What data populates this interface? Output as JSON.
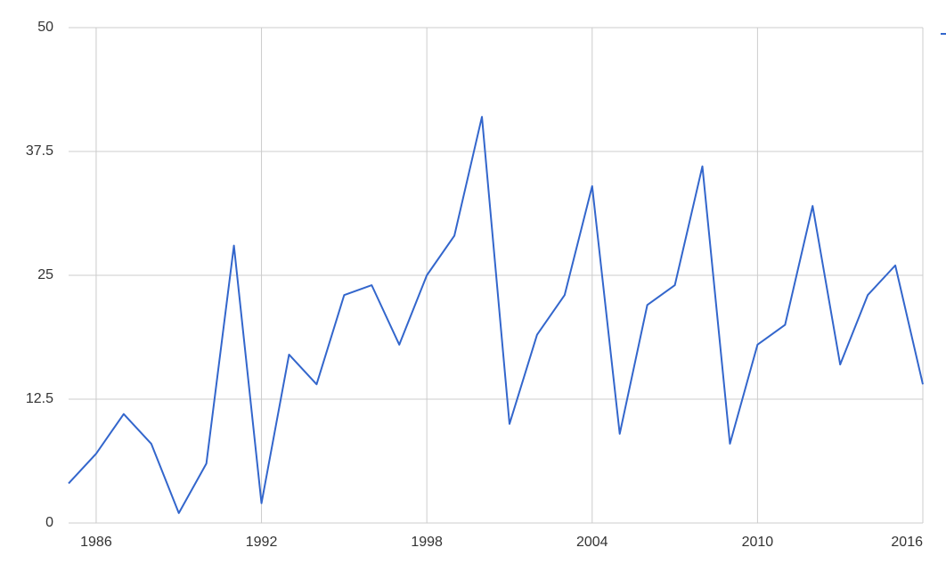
{
  "chart_data": {
    "type": "line",
    "x": [
      1985,
      1986,
      1987,
      1988,
      1989,
      1990,
      1991,
      1992,
      1993,
      1994,
      1995,
      1996,
      1997,
      1998,
      1999,
      2000,
      2001,
      2002,
      2003,
      2004,
      2005,
      2006,
      2007,
      2008,
      2009,
      2010,
      2011,
      2012,
      2013,
      2014,
      2015,
      2016
    ],
    "series": [
      {
        "color": "#3366cc",
        "values": [
          4,
          7,
          11,
          8,
          1,
          6,
          28,
          2,
          17,
          14,
          23,
          24,
          18,
          25,
          29,
          41,
          10,
          19,
          23,
          34,
          9,
          22,
          24,
          36,
          8,
          18,
          20,
          32,
          16,
          23,
          26,
          14
        ]
      }
    ],
    "xlim": [
      1985,
      2016
    ],
    "xticks": [
      1986,
      1992,
      1998,
      2004,
      2010,
      2016
    ],
    "ylim": [
      0,
      50
    ],
    "yticks": [
      0,
      12.5,
      25,
      37.5,
      50
    ],
    "grid": true
  }
}
